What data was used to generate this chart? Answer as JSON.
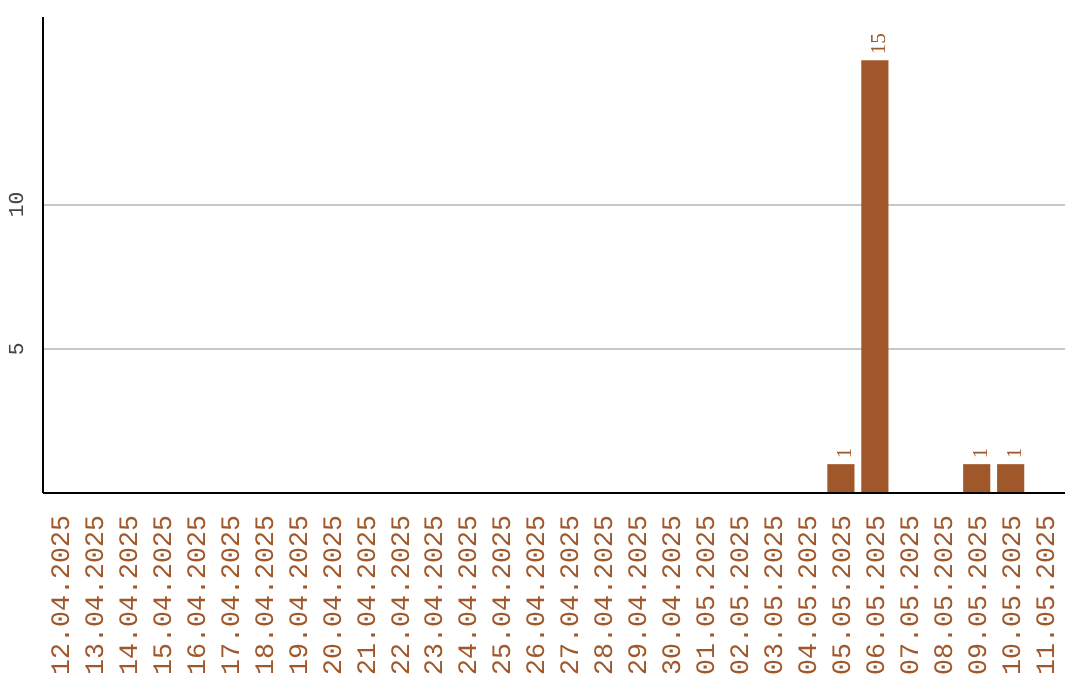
{
  "chart_data": {
    "type": "bar",
    "categories": [
      "12.04.2025",
      "13.04.2025",
      "14.04.2025",
      "15.04.2025",
      "16.04.2025",
      "17.04.2025",
      "18.04.2025",
      "19.04.2025",
      "20.04.2025",
      "21.04.2025",
      "22.04.2025",
      "23.04.2025",
      "24.04.2025",
      "25.04.2025",
      "26.04.2025",
      "27.04.2025",
      "28.04.2025",
      "29.04.2025",
      "30.04.2025",
      "01.05.2025",
      "02.05.2025",
      "03.05.2025",
      "04.05.2025",
      "05.05.2025",
      "06.05.2025",
      "07.05.2025",
      "08.05.2025",
      "09.05.2025",
      "10.05.2025",
      "11.05.2025"
    ],
    "values": [
      0,
      0,
      0,
      0,
      0,
      0,
      0,
      0,
      0,
      0,
      0,
      0,
      0,
      0,
      0,
      0,
      0,
      0,
      0,
      0,
      0,
      0,
      0,
      1,
      15,
      0,
      0,
      1,
      1,
      0
    ],
    "value_labels": [
      null,
      null,
      null,
      null,
      null,
      null,
      null,
      null,
      null,
      null,
      null,
      null,
      null,
      null,
      null,
      null,
      null,
      null,
      null,
      null,
      null,
      null,
      null,
      "1",
      "15",
      null,
      null,
      "1",
      "1",
      null
    ],
    "color": "#a0582a",
    "ylim": [
      0,
      16.5
    ],
    "yticks": [
      5,
      10
    ],
    "grid": "y"
  }
}
